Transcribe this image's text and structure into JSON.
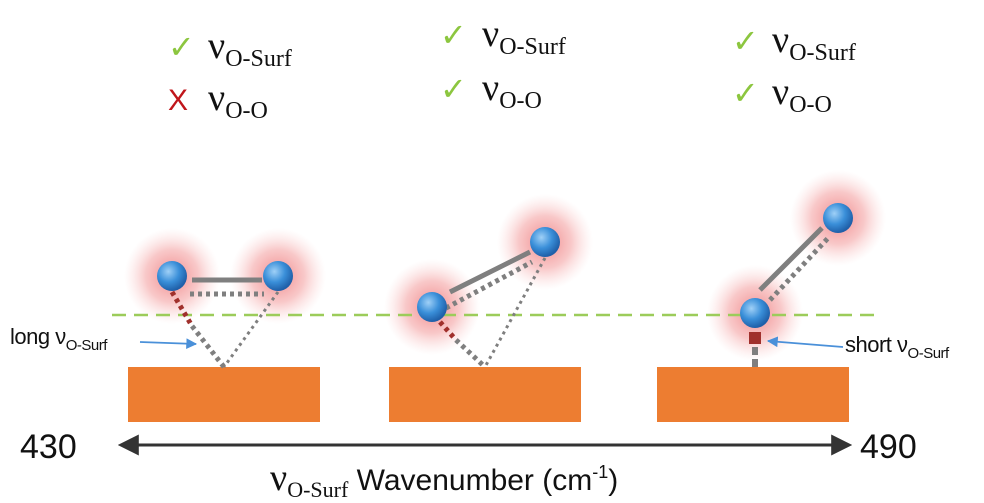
{
  "colors": {
    "check": "#8cc63f",
    "cross": "#c0161b",
    "surface": "#ed7d31",
    "atom": "#3a8fd9",
    "glow": "#e8474a",
    "bond": "#7f7f7f",
    "vibration": "#a0302c",
    "reference_line": "#9ccc5a",
    "arrow": "#333333",
    "pointer": "#4a90d9"
  },
  "symbols": {
    "nu": "ν",
    "check": "✓",
    "cross": "X"
  },
  "panels": [
    {
      "criteria": [
        {
          "status": "check",
          "symbol": "ν",
          "subscript": "O-Surf"
        },
        {
          "status": "cross",
          "symbol": "ν",
          "subscript": "O-O"
        }
      ]
    },
    {
      "criteria": [
        {
          "status": "check",
          "symbol": "ν",
          "subscript": "O-Surf"
        },
        {
          "status": "check",
          "symbol": "ν",
          "subscript": "O-O"
        }
      ]
    },
    {
      "criteria": [
        {
          "status": "check",
          "symbol": "ν",
          "subscript": "O-Surf"
        },
        {
          "status": "check",
          "symbol": "ν",
          "subscript": "O-O"
        }
      ]
    }
  ],
  "annotations": {
    "long": {
      "prefix": "long ν",
      "subscript": "O-Surf"
    },
    "short": {
      "prefix": "short ν",
      "subscript": "O-Surf"
    }
  },
  "axis": {
    "min_label": "430",
    "max_label": "490",
    "title_symbol": "ν",
    "title_subscript": "O-Surf",
    "title_text": " Wavenumber (cm",
    "title_superscript": "-1",
    "title_close": ")"
  }
}
